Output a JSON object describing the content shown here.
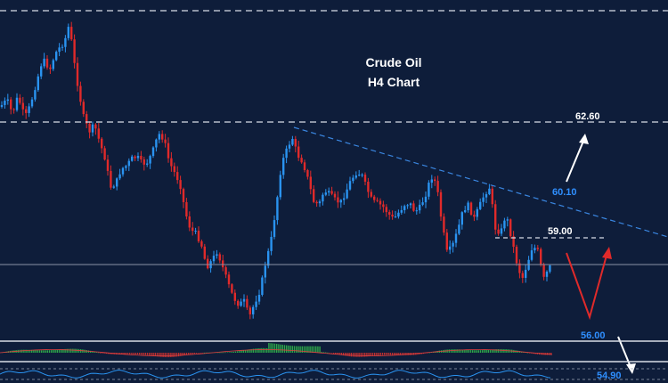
{
  "chart_data": {
    "type": "candlestick",
    "title": "Crude Oil",
    "subtitle": "H4 Chart",
    "x_axis": "bar index",
    "y_axis": "price (axis scale not shown)",
    "grid": false,
    "colors": {
      "background": "#0e1d3a",
      "bullish": "#2a93f0",
      "bearish": "#e02a2a",
      "resistance_line": "#d8dde6",
      "trendline": "#3a86e0",
      "label_white": "#ffffff",
      "label_blue": "#2f8fff",
      "arrow_white": "#ffffff",
      "arrow_red": "#e02a2a",
      "macd_hist": "#2ea84a",
      "rsi_line": "#2a93f0"
    },
    "price_levels": [
      {
        "label": "62.60",
        "style": "dashed",
        "color": "white"
      },
      {
        "label": "60.10",
        "style": "arrow-target",
        "color": "blue"
      },
      {
        "label": "59.00",
        "style": "dashed-short",
        "color": "white"
      },
      {
        "label": "56.00",
        "style": "target",
        "color": "blue"
      },
      {
        "label": "54.90",
        "style": "arrow-target",
        "color": "blue"
      }
    ],
    "trendline": "descending resistance from swing high",
    "indicators": [
      "histogram oscillator",
      "line oscillator"
    ],
    "ohlc_anchors": [
      [
        0,
        120
      ],
      [
        8,
        112
      ],
      [
        14,
        128
      ],
      [
        20,
        108
      ],
      [
        28,
        132
      ],
      [
        34,
        118
      ],
      [
        40,
        96
      ],
      [
        48,
        66
      ],
      [
        56,
        78
      ],
      [
        62,
        60
      ],
      [
        68,
        52
      ],
      [
        72,
        48
      ],
      [
        78,
        26
      ],
      [
        82,
        62
      ],
      [
        88,
        100
      ],
      [
        94,
        132
      ],
      [
        100,
        148
      ],
      [
        106,
        140
      ],
      [
        112,
        160
      ],
      [
        118,
        178
      ],
      [
        124,
        210
      ],
      [
        130,
        206
      ],
      [
        136,
        190
      ],
      [
        142,
        186
      ],
      [
        148,
        178
      ],
      [
        154,
        176
      ],
      [
        160,
        184
      ],
      [
        166,
        182
      ],
      [
        172,
        168
      ],
      [
        178,
        150
      ],
      [
        184,
        156
      ],
      [
        190,
        182
      ],
      [
        196,
        194
      ],
      [
        202,
        206
      ],
      [
        208,
        238
      ],
      [
        214,
        258
      ],
      [
        220,
        262
      ],
      [
        226,
        274
      ],
      [
        232,
        300
      ],
      [
        238,
        292
      ],
      [
        244,
        282
      ],
      [
        250,
        300
      ],
      [
        256,
        318
      ],
      [
        262,
        334
      ],
      [
        268,
        342
      ],
      [
        274,
        338
      ],
      [
        280,
        356
      ],
      [
        286,
        340
      ],
      [
        292,
        326
      ],
      [
        298,
        296
      ],
      [
        304,
        272
      ],
      [
        310,
        232
      ],
      [
        316,
        184
      ],
      [
        322,
        168
      ],
      [
        328,
        154
      ],
      [
        334,
        174
      ],
      [
        340,
        182
      ],
      [
        346,
        202
      ],
      [
        352,
        226
      ],
      [
        358,
        230
      ],
      [
        364,
        214
      ],
      [
        370,
        218
      ],
      [
        376,
        224
      ],
      [
        382,
        228
      ],
      [
        388,
        216
      ],
      [
        394,
        202
      ],
      [
        400,
        194
      ],
      [
        406,
        196
      ],
      [
        412,
        212
      ],
      [
        418,
        226
      ],
      [
        424,
        228
      ],
      [
        430,
        232
      ],
      [
        436,
        240
      ],
      [
        442,
        246
      ],
      [
        448,
        238
      ],
      [
        454,
        230
      ],
      [
        460,
        228
      ],
      [
        466,
        238
      ],
      [
        472,
        232
      ],
      [
        478,
        218
      ],
      [
        484,
        198
      ],
      [
        490,
        206
      ],
      [
        496,
        250
      ],
      [
        502,
        284
      ],
      [
        508,
        276
      ],
      [
        514,
        258
      ],
      [
        520,
        236
      ],
      [
        526,
        230
      ],
      [
        532,
        246
      ],
      [
        538,
        232
      ],
      [
        544,
        218
      ],
      [
        550,
        210
      ],
      [
        556,
        256
      ],
      [
        562,
        262
      ],
      [
        568,
        240
      ],
      [
        574,
        266
      ],
      [
        580,
        294
      ],
      [
        586,
        314
      ],
      [
        592,
        296
      ],
      [
        598,
        276
      ],
      [
        604,
        282
      ],
      [
        610,
        314
      ],
      [
        616,
        302
      ],
      [
        620,
        296
      ]
    ]
  }
}
